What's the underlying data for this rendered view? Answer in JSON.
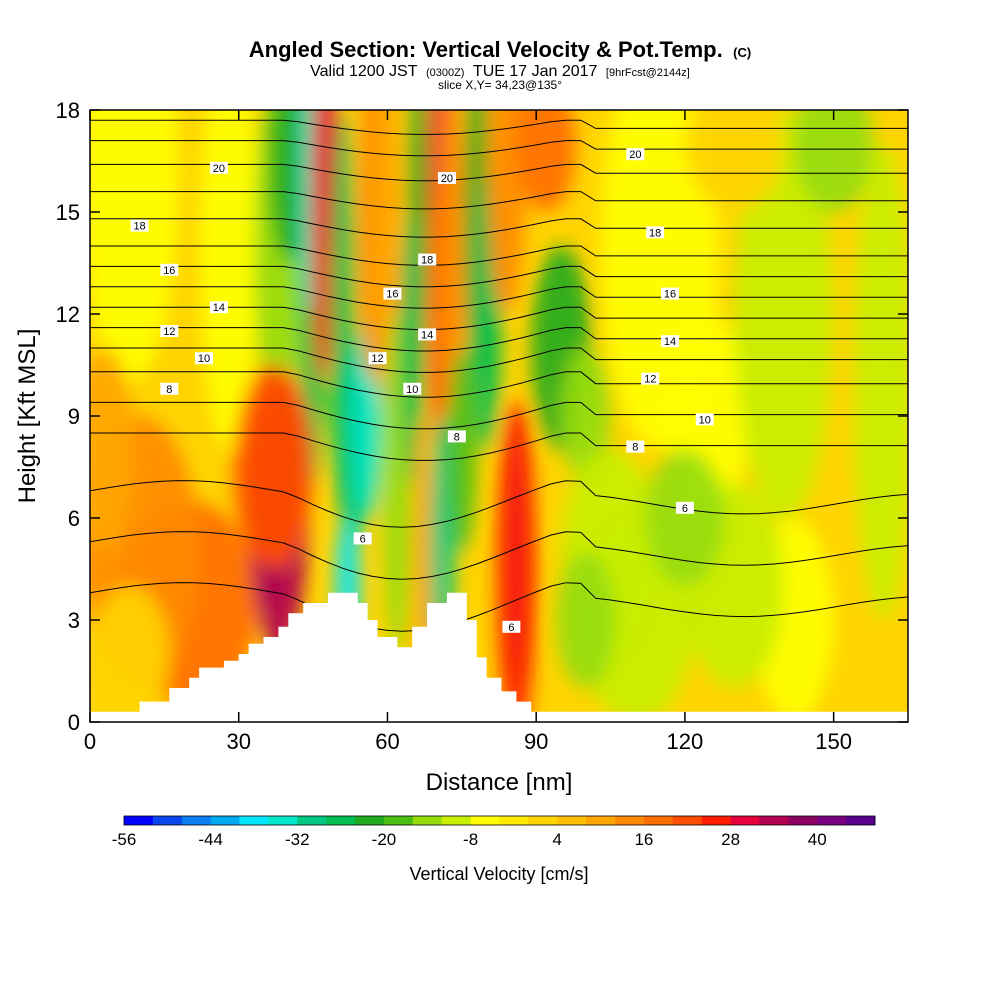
{
  "header": {
    "title_main": "Angled Section: Vertical Velocity & Pot.Temp.",
    "title_unit": "(C)",
    "sub_valid": "Valid 1200 JST",
    "sub_utc": "(0300Z)",
    "sub_date": "TUE 17 Jan 2017",
    "sub_fcst": "[9hrFcst@2144z]",
    "slice": "slice X,Y= 34,23@135°"
  },
  "chart_data": {
    "type": "heatmap",
    "title": "Angled Section: Vertical Velocity & Pot.Temp. (C)",
    "xlabel": "Distance [nm]",
    "ylabel": "Height [Kft MSL]",
    "xlim": [
      0,
      165
    ],
    "ylim": [
      0,
      18
    ],
    "x_ticks": [
      0,
      30,
      60,
      90,
      120,
      150
    ],
    "y_ticks": [
      0,
      3,
      6,
      9,
      12,
      15,
      18
    ],
    "colorbar": {
      "title": "Vertical Velocity [cm/s]",
      "min": -56,
      "max": 48,
      "step": 4,
      "tick_labels": [
        -56,
        -44,
        -32,
        -20,
        -8,
        4,
        16,
        28,
        40
      ],
      "colors": [
        "#0000ff",
        "#0a46f0",
        "#0c7ef0",
        "#00aaf0",
        "#00e6ff",
        "#00e6c8",
        "#00c882",
        "#00be50",
        "#22aa20",
        "#4bbe14",
        "#96dc0a",
        "#c8ee00",
        "#ffff00",
        "#ffea00",
        "#ffd400",
        "#ffbe00",
        "#ffa500",
        "#ff8a00",
        "#ff6e00",
        "#ff4e00",
        "#ff1e00",
        "#e6003c",
        "#b40050",
        "#8c0064",
        "#780080",
        "#5a008c"
      ]
    },
    "theta_contour_labels": [
      {
        "value": 20,
        "x": 26,
        "y": 16.3
      },
      {
        "value": 20,
        "x": 72,
        "y": 16.0
      },
      {
        "value": 20,
        "x": 110,
        "y": 16.7
      },
      {
        "value": 18,
        "x": 10,
        "y": 14.6
      },
      {
        "value": 18,
        "x": 68,
        "y": 13.6
      },
      {
        "value": 18,
        "x": 114,
        "y": 14.4
      },
      {
        "value": 16,
        "x": 16,
        "y": 13.3
      },
      {
        "value": 16,
        "x": 61,
        "y": 12.6
      },
      {
        "value": 16,
        "x": 117,
        "y": 12.6
      },
      {
        "value": 14,
        "x": 26,
        "y": 12.2
      },
      {
        "value": 14,
        "x": 68,
        "y": 11.4
      },
      {
        "value": 14,
        "x": 117,
        "y": 11.2
      },
      {
        "value": 12,
        "x": 16,
        "y": 11.5
      },
      {
        "value": 12,
        "x": 58,
        "y": 10.7
      },
      {
        "value": 12,
        "x": 113,
        "y": 10.1
      },
      {
        "value": 10,
        "x": 23,
        "y": 10.7
      },
      {
        "value": 10,
        "x": 65,
        "y": 9.8
      },
      {
        "value": 10,
        "x": 124,
        "y": 8.9
      },
      {
        "value": 8,
        "x": 16,
        "y": 9.8
      },
      {
        "value": 8,
        "x": 74,
        "y": 8.4
      },
      {
        "value": 8,
        "x": 110,
        "y": 8.1
      },
      {
        "value": 6,
        "x": 55,
        "y": 5.4
      },
      {
        "value": 6,
        "x": 120,
        "y": 6.3
      },
      {
        "value": 6,
        "x": 85,
        "y": 2.8
      }
    ]
  }
}
